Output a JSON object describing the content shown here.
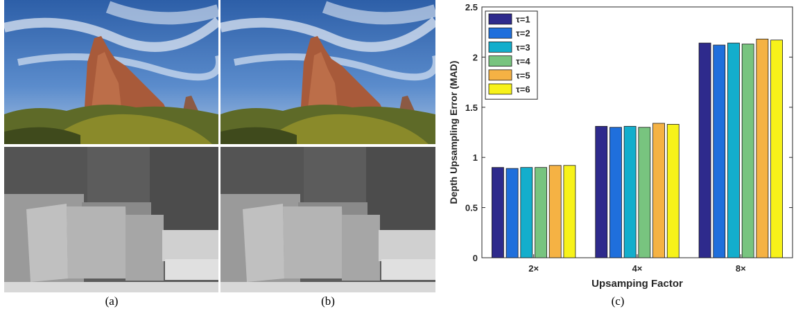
{
  "captions": {
    "a": "(a)",
    "b": "(b)",
    "c": "(c)"
  },
  "images": {
    "top": {
      "subject": "rock formation against cloudy blue sky with autumn trees"
    },
    "bottom": {
      "subject": "grayscale depth map of stacked boxes"
    }
  },
  "chart_data": {
    "type": "bar",
    "categories": [
      "2×",
      "4×",
      "8×"
    ],
    "series": [
      {
        "name": "τ=1",
        "color": "#2e2a8c",
        "values": [
          0.9,
          1.31,
          2.14
        ]
      },
      {
        "name": "τ=2",
        "color": "#1f6fdc",
        "values": [
          0.89,
          1.3,
          2.12
        ]
      },
      {
        "name": "τ=3",
        "color": "#13aecc",
        "values": [
          0.9,
          1.31,
          2.14
        ]
      },
      {
        "name": "τ=4",
        "color": "#78c47f",
        "values": [
          0.9,
          1.3,
          2.13
        ]
      },
      {
        "name": "τ=5",
        "color": "#f5b244",
        "values": [
          0.92,
          1.34,
          2.18
        ]
      },
      {
        "name": "τ=6",
        "color": "#f7f21a",
        "values": [
          0.92,
          1.33,
          2.17
        ]
      }
    ],
    "title": "",
    "xlabel": "Upsamping Factor",
    "ylabel": "Depth Upsampling Error (MAD)",
    "ylim": [
      0,
      2.5
    ],
    "yticks": [
      "0",
      "0.5",
      "1",
      "1.5",
      "2",
      "2.5"
    ],
    "legend": "top-left",
    "grid": false
  }
}
